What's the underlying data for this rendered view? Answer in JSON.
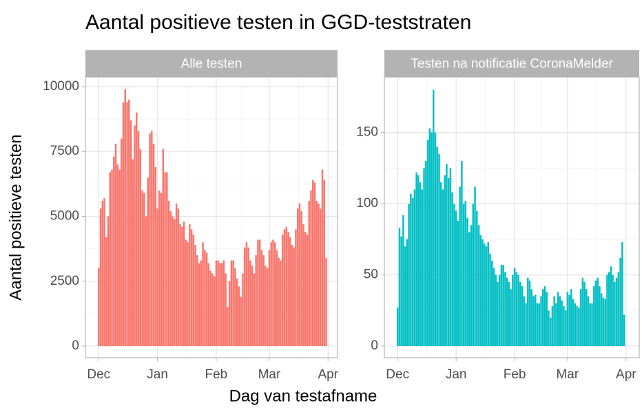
{
  "title": "Aantal positieve testen in GGD-teststraten",
  "xlabel": "Dag van testafname",
  "ylabel": "Aantal positieve testen",
  "chart_data": [
    {
      "type": "bar",
      "subtitle": "Alle testen",
      "color": "#F8766D",
      "grid": true,
      "x": [
        0,
        1,
        2,
        3,
        4,
        5,
        6,
        7,
        8,
        9,
        10,
        11,
        12,
        13,
        14,
        15,
        16,
        17,
        18,
        19,
        20,
        21,
        22,
        23,
        24,
        25,
        26,
        27,
        28,
        29,
        30,
        31,
        32,
        33,
        34,
        35,
        36,
        37,
        38,
        39,
        40,
        41,
        42,
        43,
        44,
        45,
        46,
        47,
        48,
        49,
        50,
        51,
        52,
        53,
        54,
        55,
        56,
        57,
        58,
        59,
        60,
        61,
        62,
        63,
        64,
        65,
        66,
        67,
        68,
        69,
        70,
        71,
        72,
        73,
        74,
        75,
        76,
        77,
        78,
        79,
        80,
        81,
        82,
        83,
        84,
        85,
        86,
        87,
        88,
        89,
        90,
        91,
        92,
        93,
        94,
        95,
        96,
        97,
        98,
        99,
        100,
        101,
        102,
        103,
        104,
        105,
        106,
        107,
        108,
        109,
        110,
        111,
        112,
        113,
        114,
        115,
        116,
        117,
        118,
        119,
        120
      ],
      "values": [
        3000,
        5300,
        5600,
        5700,
        4200,
        5000,
        6700,
        6800,
        7300,
        7800,
        7000,
        6800,
        8000,
        9400,
        9900,
        9400,
        9500,
        8700,
        7200,
        8500,
        9000,
        8300,
        7600,
        6000,
        5900,
        5000,
        6500,
        8200,
        8300,
        7800,
        6900,
        5300,
        6000,
        5900,
        7600,
        6700,
        6700,
        5600,
        5200,
        5000,
        4900,
        5500,
        5300,
        4700,
        4600,
        4800,
        4100,
        4000,
        4700,
        4500,
        4300,
        3900,
        3500,
        3200,
        3300,
        4000,
        3700,
        3600,
        3200,
        2900,
        2800,
        2700,
        3300,
        3300,
        3200,
        3200,
        3300,
        2800,
        1500,
        2500,
        3300,
        3300,
        3000,
        2600,
        2300,
        1900,
        2800,
        3800,
        4000,
        3800,
        3300,
        3100,
        2800,
        3500,
        4100,
        4100,
        3700,
        3500,
        3100,
        3000,
        3700,
        4000,
        4100,
        4000,
        3700,
        3400,
        3300,
        4300,
        4500,
        4600,
        4400,
        4200,
        3900,
        3800,
        4500,
        5300,
        5500,
        5200,
        4700,
        4400,
        4300,
        5600,
        6000,
        6400,
        6300,
        5600,
        5500,
        5300,
        6800,
        6400,
        3400
      ],
      "xlim": [
        -7,
        126
      ],
      "xticks": [
        {
          "value": 0,
          "label": "Dec"
        },
        {
          "value": 31,
          "label": "Jan"
        },
        {
          "value": 62,
          "label": "Feb"
        },
        {
          "value": 90,
          "label": "Mar"
        },
        {
          "value": 121,
          "label": "Apr"
        }
      ],
      "ylim": [
        -450,
        10370
      ],
      "yticks": [
        0,
        2500,
        5000,
        7500,
        10000
      ]
    },
    {
      "type": "bar",
      "subtitle": "Testen na notificatie CoronaMelder",
      "color": "#00BFC4",
      "grid": true,
      "x": [
        0,
        1,
        2,
        3,
        4,
        5,
        6,
        7,
        8,
        9,
        10,
        11,
        12,
        13,
        14,
        15,
        16,
        17,
        18,
        19,
        20,
        21,
        22,
        23,
        24,
        25,
        26,
        27,
        28,
        29,
        30,
        31,
        32,
        33,
        34,
        35,
        36,
        37,
        38,
        39,
        40,
        41,
        42,
        43,
        44,
        45,
        46,
        47,
        48,
        49,
        50,
        51,
        52,
        53,
        54,
        55,
        56,
        57,
        58,
        59,
        60,
        61,
        62,
        63,
        64,
        65,
        66,
        67,
        68,
        69,
        70,
        71,
        72,
        73,
        74,
        75,
        76,
        77,
        78,
        79,
        80,
        81,
        82,
        83,
        84,
        85,
        86,
        87,
        88,
        89,
        90,
        91,
        92,
        93,
        94,
        95,
        96,
        97,
        98,
        99,
        100,
        101,
        102,
        103,
        104,
        105,
        106,
        107,
        108,
        109,
        110,
        111,
        112,
        113,
        114,
        115,
        116,
        117,
        118,
        119,
        120
      ],
      "values": [
        27,
        83,
        77,
        92,
        70,
        75,
        100,
        107,
        104,
        110,
        122,
        120,
        115,
        110,
        125,
        130,
        145,
        153,
        150,
        180,
        150,
        140,
        135,
        115,
        110,
        120,
        128,
        118,
        125,
        108,
        100,
        95,
        88,
        112,
        130,
        100,
        102,
        90,
        80,
        85,
        100,
        112,
        95,
        85,
        78,
        75,
        72,
        70,
        73,
        65,
        60,
        55,
        50,
        45,
        50,
        57,
        57,
        52,
        48,
        45,
        40,
        50,
        55,
        52,
        50,
        45,
        42,
        35,
        30,
        48,
        46,
        40,
        35,
        36,
        30,
        30,
        35,
        40,
        42,
        38,
        25,
        20,
        28,
        35,
        30,
        38,
        35,
        32,
        28,
        25,
        38,
        36,
        40,
        33,
        30,
        28,
        27,
        40,
        48,
        45,
        40,
        35,
        30,
        30,
        42,
        46,
        48,
        42,
        37,
        34,
        33,
        50,
        52,
        56,
        50,
        45,
        48,
        52,
        62,
        73,
        22
      ],
      "xlim": [
        -7,
        128
      ],
      "xticks": [
        {
          "value": 0,
          "label": "Dec"
        },
        {
          "value": 31,
          "label": "Jan"
        },
        {
          "value": 62,
          "label": "Feb"
        },
        {
          "value": 90,
          "label": "Mar"
        },
        {
          "value": 121,
          "label": "Apr"
        }
      ],
      "ylim": [
        -8.2,
        189
      ],
      "yticks": [
        0,
        50,
        100,
        150
      ]
    }
  ]
}
